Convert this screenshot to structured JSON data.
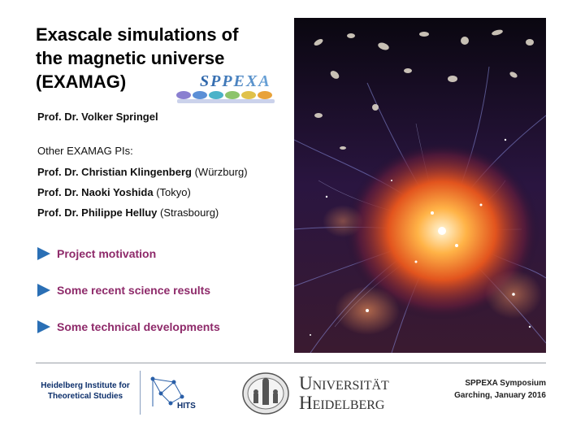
{
  "title": {
    "lines": [
      "Exascale simulations of",
      "the magnetic universe",
      "(EXAMAG)"
    ]
  },
  "sppexa_logo": {
    "text": "SPPEXA"
  },
  "pi": {
    "main": "Prof. Dr. Volker Springel",
    "others_heading": "Other EXAMAG PIs:",
    "others": [
      {
        "name": "Prof. Dr. Christian Klingenberg",
        "affiliation": "(Würzburg)"
      },
      {
        "name": "Prof. Dr. Naoki Yoshida",
        "affiliation": "(Tokyo)"
      },
      {
        "name": "Prof. Dr. Philippe Helluy",
        "affiliation": "(Strasbourg)"
      }
    ]
  },
  "bullets": [
    {
      "label": "Project motivation"
    },
    {
      "label": "Some recent science results"
    },
    {
      "label": "Some technical developments"
    }
  ],
  "footer": {
    "hits_text_line1": "Heidelberg Institute for",
    "hits_text_line2": "Theoretical Studies",
    "hits_logo_label": "HITS",
    "university_line1": "Universität",
    "university_line2": "Heidelberg",
    "symposium_line1": "SPPEXA Symposium",
    "symposium_line2": "Garching, January 2016"
  },
  "colors": {
    "bullet_text": "#8e2a6a",
    "bullet_arrow": "#2a6fb5",
    "hits_blue": "#0c2f6b"
  }
}
